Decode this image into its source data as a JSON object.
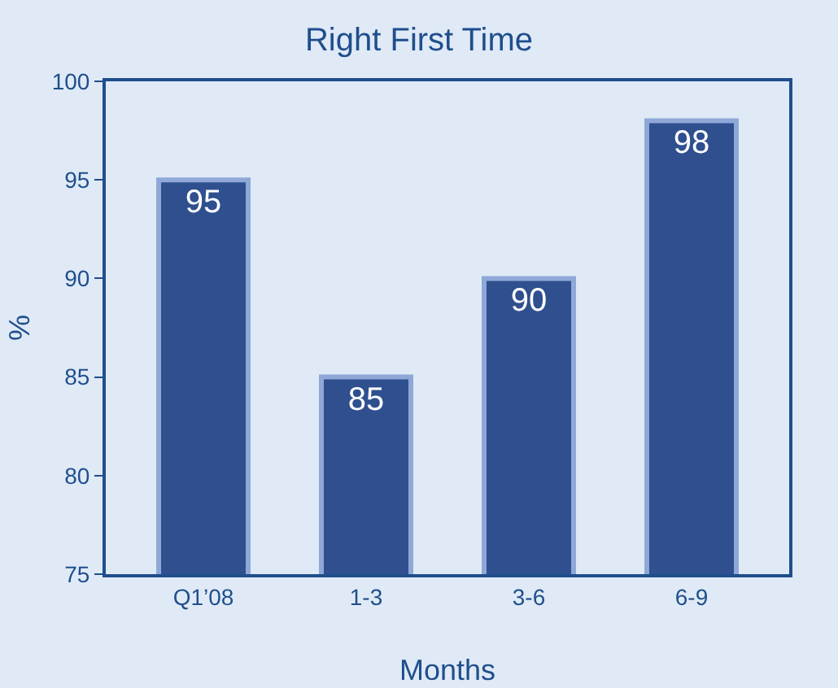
{
  "chart_data": {
    "type": "bar",
    "title": "Right First Time",
    "xlabel": "Months",
    "ylabel": "%",
    "categories": [
      "Q1’08",
      "1-3",
      "3-6",
      "6-9"
    ],
    "values": [
      95,
      85,
      90,
      98
    ],
    "color": "#2f4f8f",
    "ylim": [
      75,
      100
    ],
    "yticks": [
      75,
      80,
      85,
      90,
      95,
      100
    ],
    "grid": false,
    "data_labels": true
  }
}
